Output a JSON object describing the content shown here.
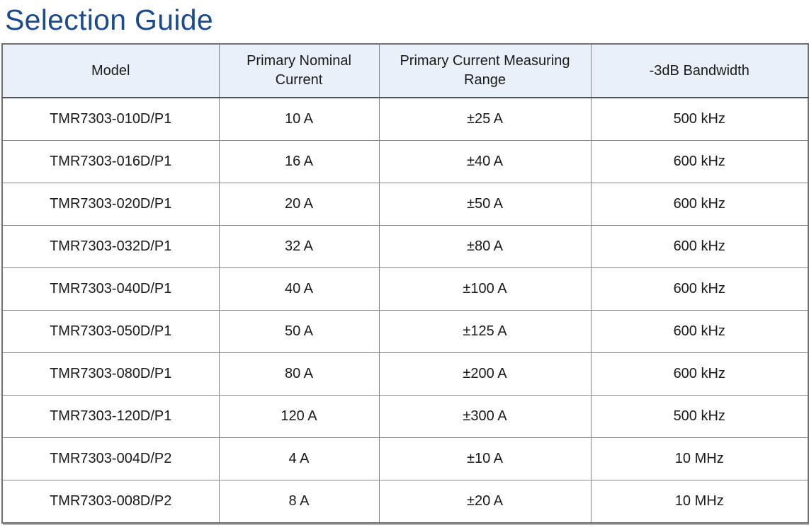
{
  "page": {
    "title": "Selection Guide"
  },
  "colors": {
    "title_color": "#1b4b8c",
    "header_bg": "#e9f0fa",
    "border_color": "#858585",
    "text_color": "#1a1a1a"
  },
  "table": {
    "columns": [
      "Model",
      "Primary Nominal Current",
      "Primary Current Measuring Range",
      "-3dB Bandwidth"
    ],
    "column_keys": [
      "model",
      "primary-nominal-current",
      "primary-current-measuring-range",
      "bandwidth"
    ],
    "rows": [
      [
        "TMR7303-010D/P1",
        "10 A",
        "±25 A",
        "500 kHz"
      ],
      [
        "TMR7303-016D/P1",
        "16 A",
        "±40 A",
        "600 kHz"
      ],
      [
        "TMR7303-020D/P1",
        "20 A",
        "±50 A",
        "600 kHz"
      ],
      [
        "TMR7303-032D/P1",
        "32 A",
        "±80 A",
        "600 kHz"
      ],
      [
        "TMR7303-040D/P1",
        "40 A",
        "±100 A",
        "600 kHz"
      ],
      [
        "TMR7303-050D/P1",
        "50 A",
        "±125 A",
        "600 kHz"
      ],
      [
        "TMR7303-080D/P1",
        "80 A",
        "±200 A",
        "600 kHz"
      ],
      [
        "TMR7303-120D/P1",
        "120 A",
        "±300 A",
        "500 kHz"
      ],
      [
        "TMR7303-004D/P2",
        "4 A",
        "±10 A",
        "10 MHz"
      ],
      [
        "TMR7303-008D/P2",
        "8 A",
        "±20 A",
        "10 MHz"
      ]
    ]
  }
}
